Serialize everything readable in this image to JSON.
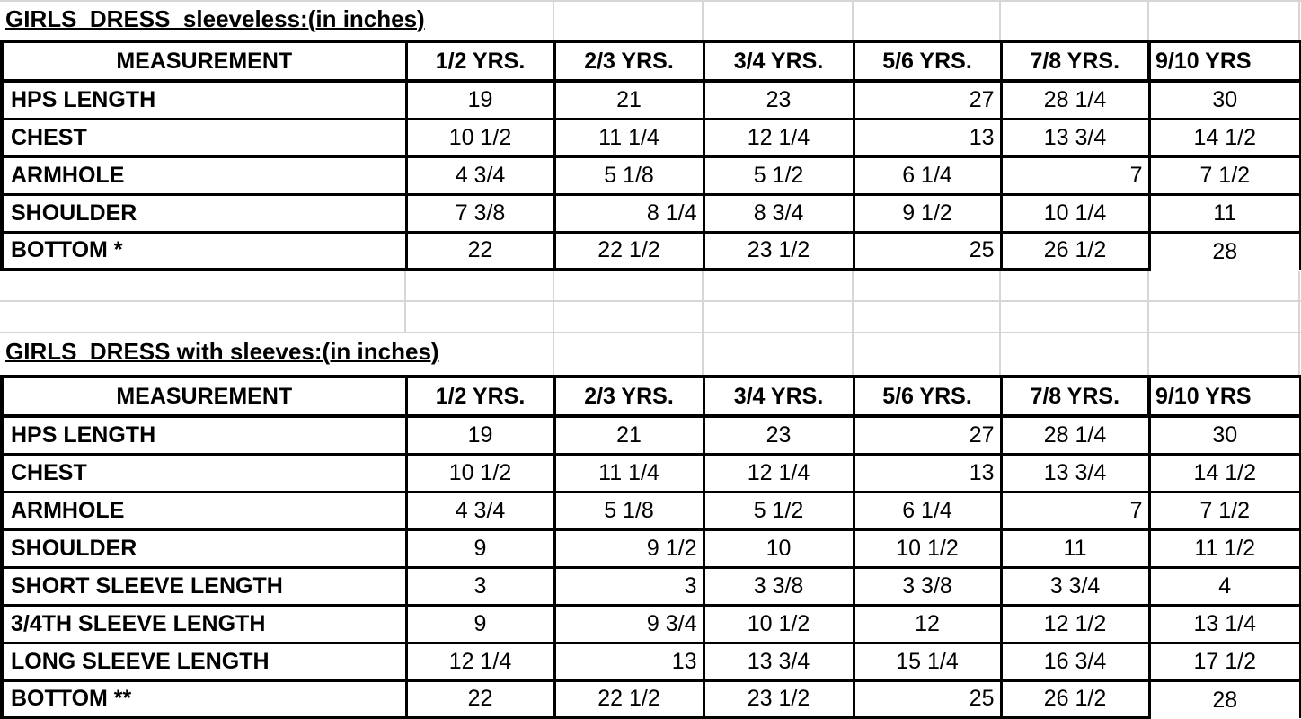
{
  "tables": [
    {
      "title": "GIRLS  DRESS  sleeveless:(in inches)",
      "columns": [
        "MEASUREMENT",
        "1/2 YRS.",
        "2/3 YRS.",
        "3/4 YRS.",
        "5/6 YRS.",
        "7/8 YRS.",
        "9/10 YRS"
      ],
      "rows": [
        {
          "label": "HPS LENGTH",
          "values": [
            "19",
            "21",
            "23",
            "27",
            "28 1/4",
            "30"
          ],
          "align": [
            "c",
            "c",
            "c",
            "r",
            "c",
            "c"
          ]
        },
        {
          "label": "CHEST",
          "values": [
            "10 1/2",
            "11 1/4",
            "12 1/4",
            "13",
            "13 3/4",
            "14 1/2"
          ],
          "align": [
            "c",
            "c",
            "c",
            "r",
            "c",
            "c"
          ]
        },
        {
          "label": "ARMHOLE",
          "values": [
            "4 3/4",
            "5 1/8",
            "5 1/2",
            "6 1/4",
            "7",
            "7 1/2"
          ],
          "align": [
            "c",
            "c",
            "c",
            "c",
            "r",
            "c"
          ]
        },
        {
          "label": "SHOULDER",
          "values": [
            "7 3/8",
            "8 1/4",
            "8 3/4",
            "9 1/2",
            "10 1/4",
            "11"
          ],
          "align": [
            "c",
            "r",
            "c",
            "c",
            "c",
            "c"
          ]
        },
        {
          "label": "BOTTOM *",
          "values": [
            "22",
            "22 1/2",
            "23 1/2",
            "25",
            "26 1/2",
            "28"
          ],
          "align": [
            "c",
            "c",
            "c",
            "r",
            "c",
            "c"
          ]
        }
      ]
    },
    {
      "title": "GIRLS  DRESS with sleeves:(in inches)",
      "columns": [
        "MEASUREMENT",
        "1/2 YRS.",
        "2/3 YRS.",
        "3/4 YRS.",
        "5/6 YRS.",
        "7/8 YRS.",
        "9/10 YRS"
      ],
      "rows": [
        {
          "label": "HPS LENGTH",
          "values": [
            "19",
            "21",
            "23",
            "27",
            "28 1/4",
            "30"
          ],
          "align": [
            "c",
            "c",
            "c",
            "r",
            "c",
            "c"
          ]
        },
        {
          "label": "CHEST",
          "values": [
            "10 1/2",
            "11 1/4",
            "12 1/4",
            "13",
            "13 3/4",
            "14 1/2"
          ],
          "align": [
            "c",
            "c",
            "c",
            "r",
            "c",
            "c"
          ]
        },
        {
          "label": "ARMHOLE",
          "values": [
            "4 3/4",
            "5 1/8",
            "5 1/2",
            "6 1/4",
            "7",
            "7 1/2"
          ],
          "align": [
            "c",
            "c",
            "c",
            "c",
            "r",
            "c"
          ]
        },
        {
          "label": "SHOULDER",
          "values": [
            "9",
            "9 1/2",
            "10",
            "10 1/2",
            "11",
            "11 1/2"
          ],
          "align": [
            "c",
            "r",
            "c",
            "c",
            "c",
            "c"
          ]
        },
        {
          "label": "SHORT SLEEVE LENGTH",
          "values": [
            "3",
            "3",
            "3 3/8",
            "3 3/8",
            "3 3/4",
            "4"
          ],
          "align": [
            "c",
            "r",
            "c",
            "c",
            "c",
            "c"
          ]
        },
        {
          "label": "3/4TH SLEEVE LENGTH",
          "values": [
            "9",
            "9 3/4",
            "10 1/2",
            "12",
            "12 1/2",
            "13 1/4"
          ],
          "align": [
            "c",
            "r",
            "c",
            "c",
            "c",
            "c"
          ]
        },
        {
          "label": "LONG SLEEVE LENGTH",
          "values": [
            "12 1/4",
            "13",
            "13 3/4",
            "15 1/4",
            "16 3/4",
            "17 1/2"
          ],
          "align": [
            "c",
            "r",
            "c",
            "c",
            "c",
            "c"
          ]
        },
        {
          "label": "BOTTOM **",
          "values": [
            "22",
            "22 1/2",
            "23 1/2",
            "25",
            "26 1/2",
            "28"
          ],
          "align": [
            "c",
            "c",
            "c",
            "r",
            "c",
            "c"
          ]
        }
      ]
    }
  ]
}
